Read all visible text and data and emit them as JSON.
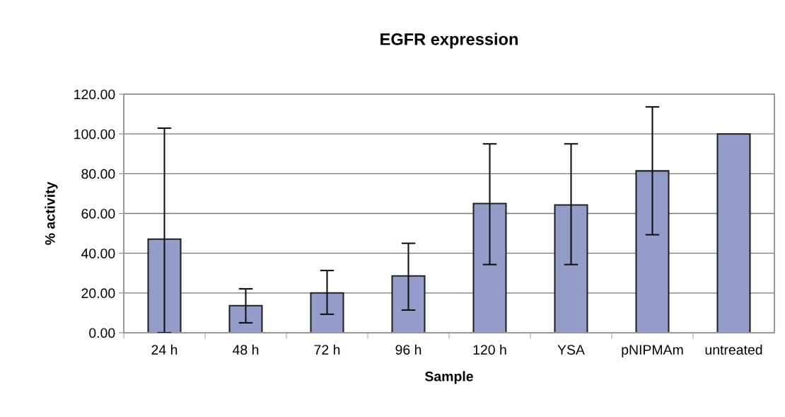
{
  "chart_data": {
    "type": "bar",
    "title": "EGFR expression",
    "xlabel": "Sample",
    "ylabel": "% activity",
    "categories": [
      "24 h",
      "48 h",
      "72 h",
      "96 h",
      "120 h",
      "YSA",
      "pNIPMAm",
      "untreated"
    ],
    "values": [
      47.1,
      13.6,
      20.0,
      28.6,
      65.0,
      64.3,
      81.4,
      100.0
    ],
    "errors": [
      [
        0,
        102.9
      ],
      [
        5.0,
        22.1
      ],
      [
        9.3,
        31.3
      ],
      [
        11.4,
        45.0
      ],
      [
        34.3,
        95.0
      ],
      [
        34.3,
        95.0
      ],
      [
        49.3,
        113.6
      ],
      null
    ],
    "color": "#949dc9",
    "ylim": [
      0,
      120
    ],
    "yticks": [
      {
        "value": 0,
        "label": "0.00"
      },
      {
        "value": 20,
        "label": "20.00"
      },
      {
        "value": 40,
        "label": "40.00"
      },
      {
        "value": 60,
        "label": "60.00"
      },
      {
        "value": 80,
        "label": "80.00"
      },
      {
        "value": 100,
        "label": "100.00"
      },
      {
        "value": 120,
        "label": "120.00"
      }
    ],
    "grid": "y",
    "legend": false
  }
}
